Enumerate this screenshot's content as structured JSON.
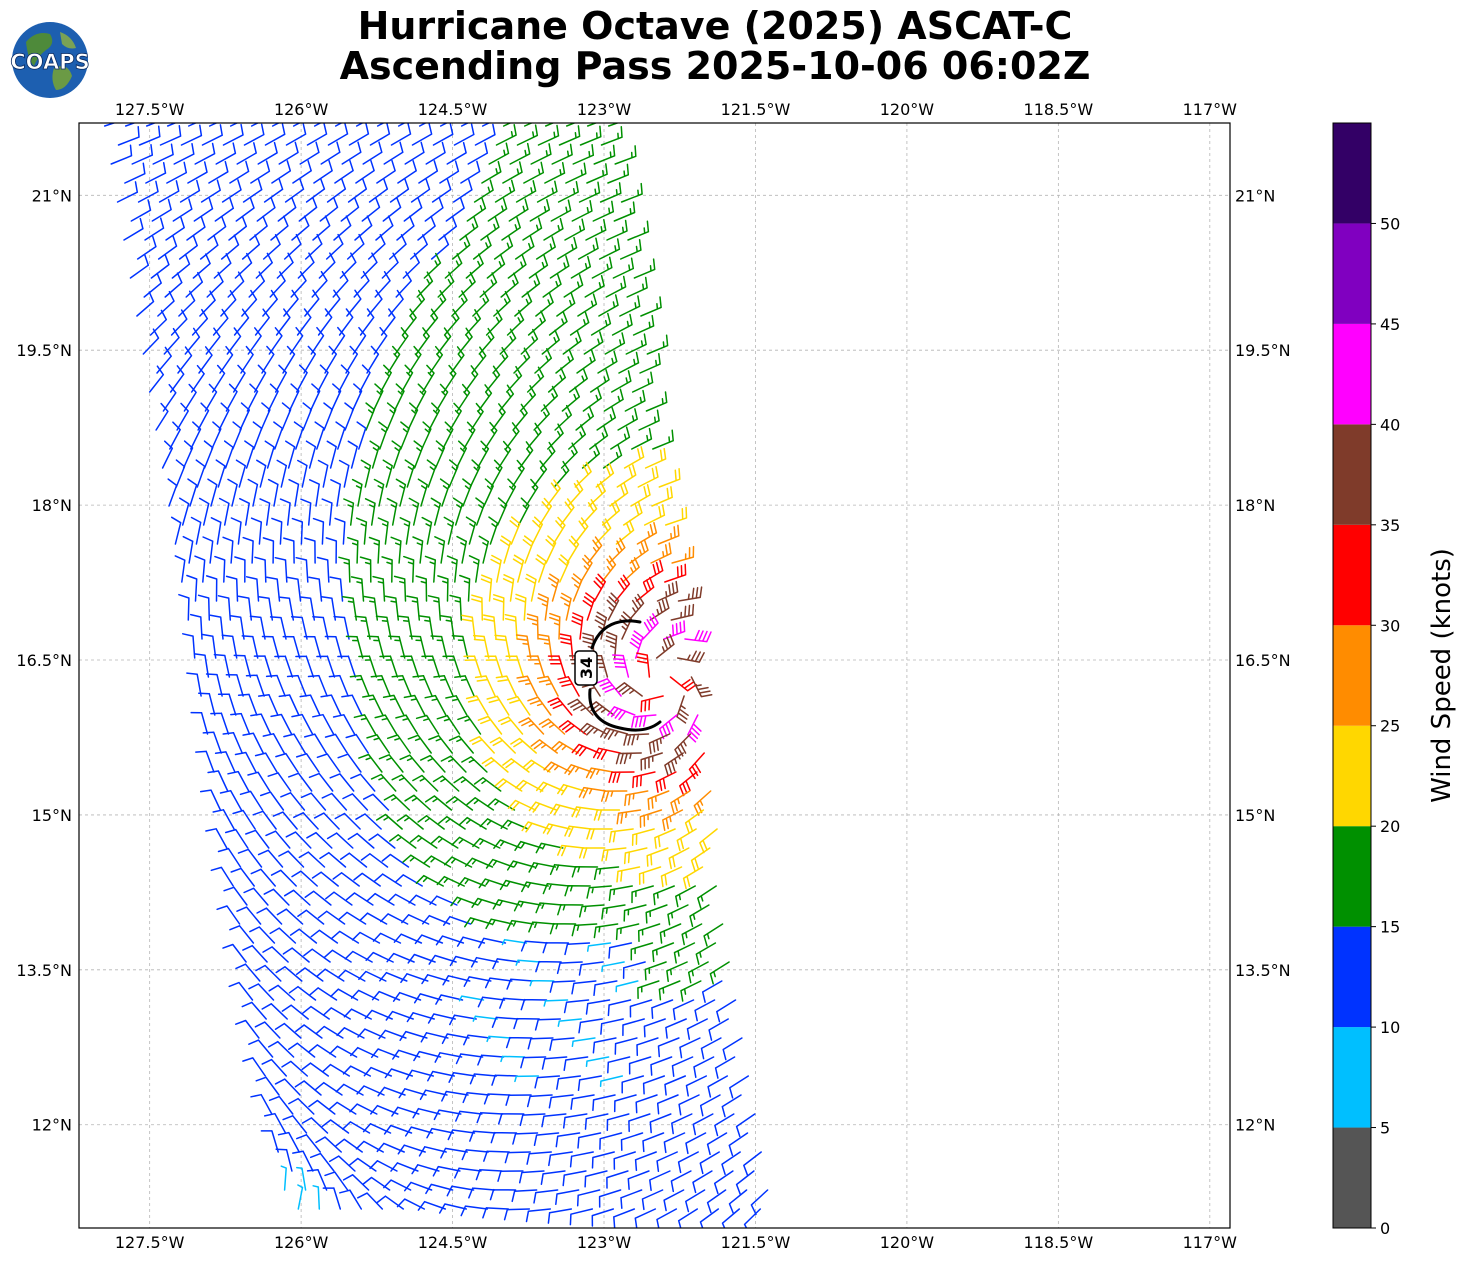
{
  "header": {
    "title_line1": "Hurricane Octave (2025) ASCAT-C",
    "title_line2": "Ascending Pass 2025-10-06 06:02Z",
    "logo_text": "COAPS"
  },
  "chart_data": {
    "type": "wind-barb map",
    "lon_range": [
      -128.2,
      -116.8
    ],
    "lat_range": [
      11.0,
      21.7
    ],
    "lon_ticks": [
      "127.5°W",
      "126°W",
      "124.5°W",
      "123°W",
      "121.5°W",
      "120°W",
      "118.5°W",
      "117°W"
    ],
    "lon_tick_values": [
      -127.5,
      -126,
      -124.5,
      -123,
      -121.5,
      -120,
      -118.5,
      -117
    ],
    "lat_ticks": [
      "21°N",
      "19.5°N",
      "18°N",
      "16.5°N",
      "15°N",
      "13.5°N",
      "12°N"
    ],
    "lat_tick_values": [
      21,
      19.5,
      18,
      16.5,
      15,
      13.5,
      12
    ],
    "grid": true,
    "storm_center": {
      "lon": -122.4,
      "lat": 16.3
    },
    "contour": {
      "label": "34",
      "value_knots": 34,
      "color": "#000000"
    },
    "swath_corners": {
      "top_left": {
        "lon": -127.95,
        "lat": 21.7
      },
      "top_right": {
        "lon": -122.9,
        "lat": 21.7
      },
      "bottom_right": {
        "lon": -121.3,
        "lat": 11.0
      },
      "bottom_left": {
        "lon": -126.1,
        "lat": 11.0
      }
    },
    "colorbar": {
      "label": "Wind Speed (knots)",
      "ticks": [
        "0",
        "5",
        "10",
        "15",
        "20",
        "25",
        "30",
        "35",
        "40",
        "45",
        "50"
      ],
      "bounds": [
        0,
        5,
        10,
        15,
        20,
        25,
        30,
        35,
        40,
        45,
        50,
        55
      ],
      "colors": [
        "#555555",
        "#00bfff",
        "#0033ff",
        "#009000",
        "#ffd700",
        "#ff8c00",
        "#ff0000",
        "#7f3b2a",
        "#ff00ff",
        "#8000c0",
        "#330066"
      ]
    }
  }
}
